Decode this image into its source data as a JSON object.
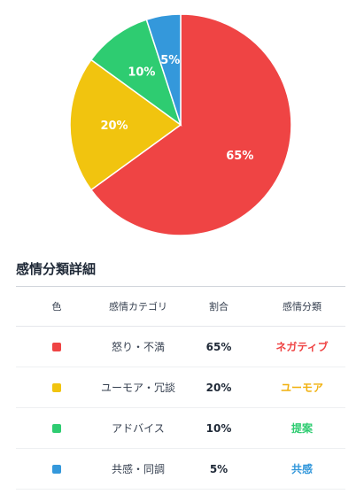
{
  "chart_data": {
    "type": "pie",
    "labels": [
      "怒り・不満",
      "ユーモア・冗談",
      "アドバイス",
      "共感・同調"
    ],
    "values": [
      65,
      20,
      10,
      5
    ],
    "colors": [
      "#ef4444",
      "#f1c40f",
      "#2ecc71",
      "#3498db"
    ],
    "data_labels": [
      "65%",
      "20%",
      "10%",
      "5%"
    ]
  },
  "section": {
    "title": "感情分類詳細"
  },
  "table": {
    "headers": [
      "色",
      "感情カテゴリ",
      "割合",
      "感情分類"
    ],
    "rows": [
      {
        "color": "#ef4444",
        "category": "怒り・不満",
        "percent": "65%",
        "class": "ネガティブ",
        "class_color": "#ef4444"
      },
      {
        "color": "#f1c40f",
        "category": "ユーモア・冗談",
        "percent": "20%",
        "class": "ユーモア",
        "class_color": "#f1b10f"
      },
      {
        "color": "#2ecc71",
        "category": "アドバイス",
        "percent": "10%",
        "class": "提案",
        "class_color": "#2ecc71"
      },
      {
        "color": "#3498db",
        "category": "共感・同調",
        "percent": "5%",
        "class": "共感",
        "class_color": "#3498db"
      }
    ]
  }
}
